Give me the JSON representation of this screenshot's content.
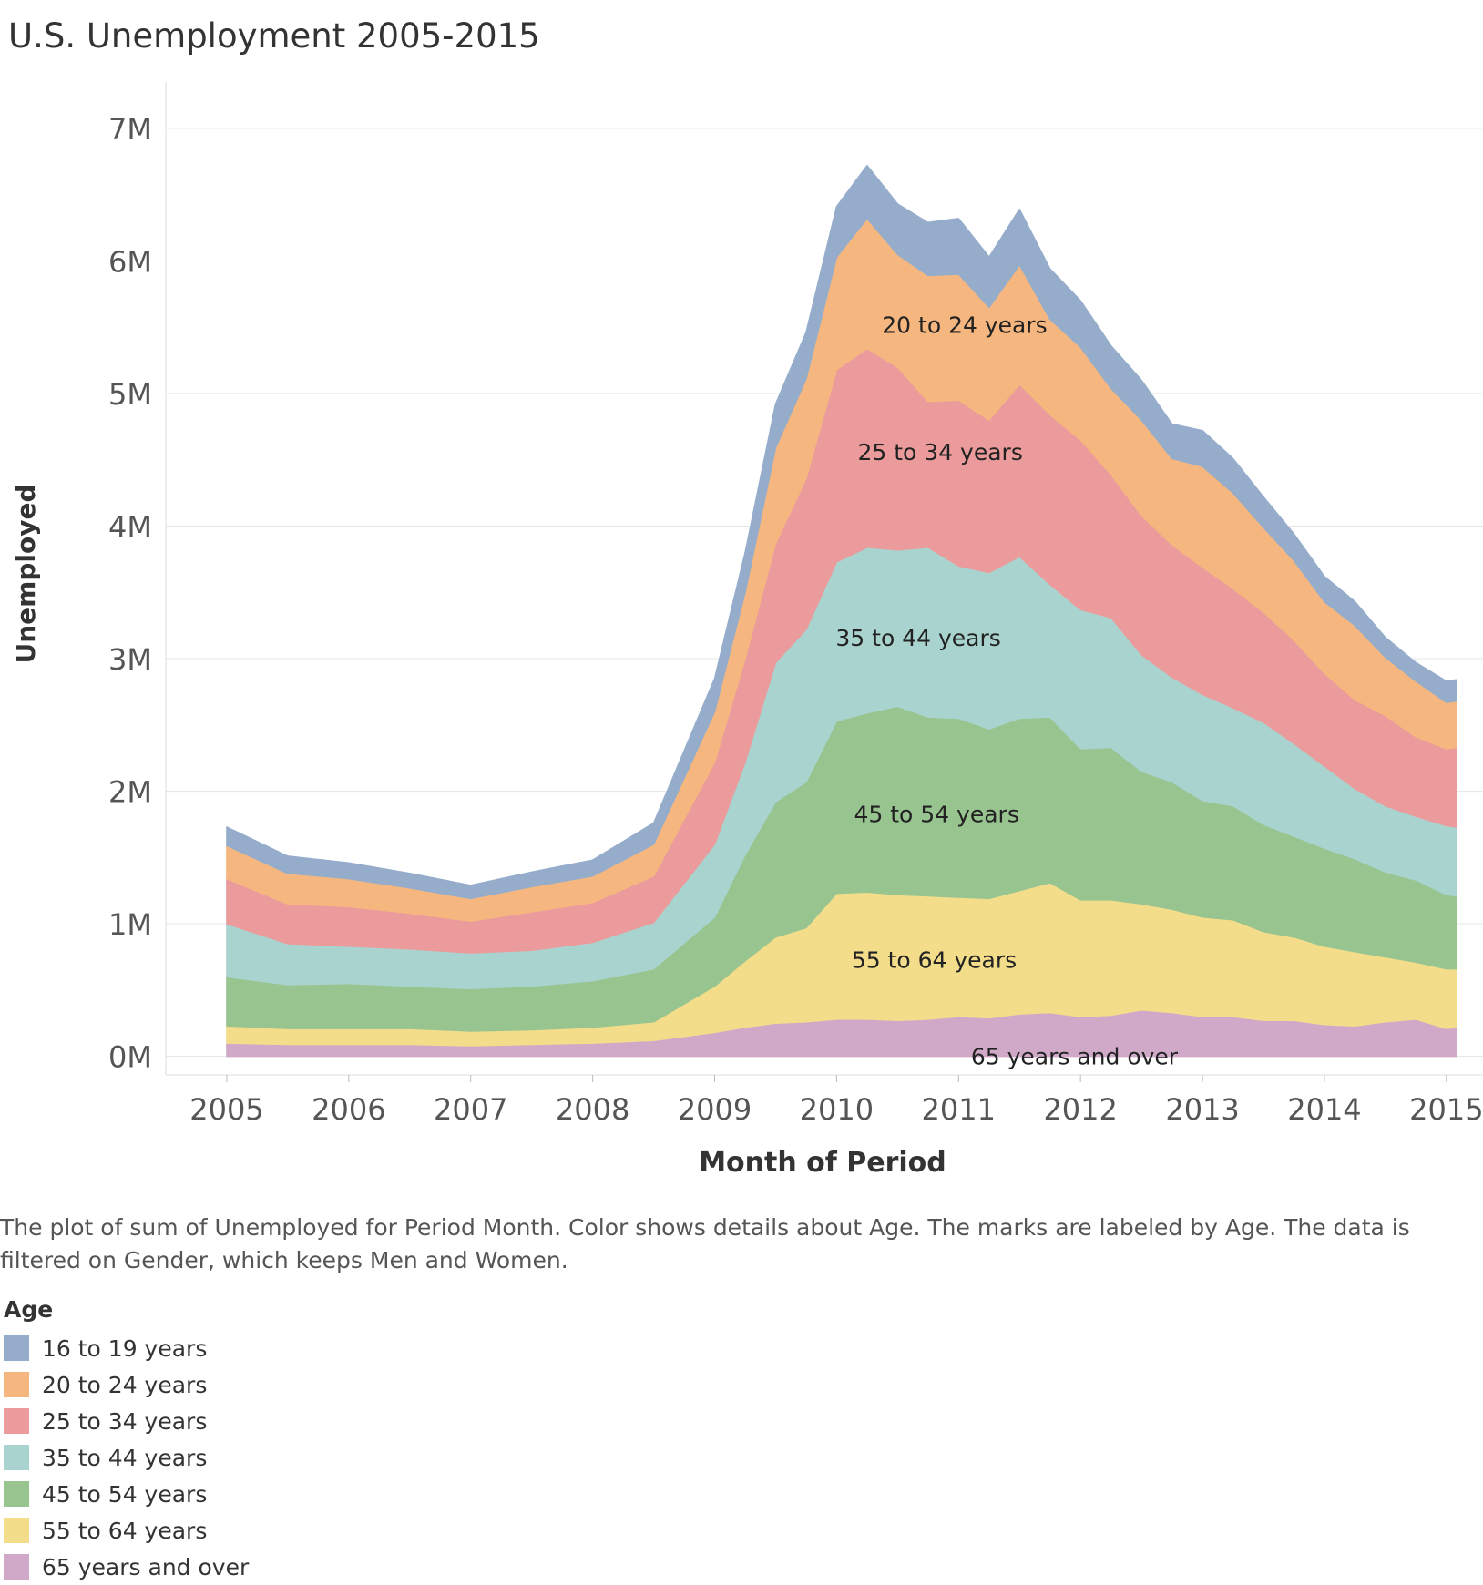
{
  "chart_data": {
    "type": "area",
    "stacked": true,
    "title": "U.S. Unemployment 2005-2015",
    "xlabel": "Month of Period",
    "ylabel": "Unemployed",
    "x_ticks": [
      "2005",
      "2006",
      "2007",
      "2008",
      "2009",
      "2010",
      "2011",
      "2012",
      "2013",
      "2014",
      "2015"
    ],
    "y_ticks": [
      "0M",
      "1M",
      "2M",
      "3M",
      "4M",
      "5M",
      "6M",
      "7M"
    ],
    "ylim": [
      -140000,
      7350000
    ],
    "xlim": [
      2004.5,
      2015.3
    ],
    "grid": true,
    "x": [
      2005.0,
      2005.5,
      2006.0,
      2006.5,
      2007.0,
      2007.5,
      2008.0,
      2008.5,
      2009.0,
      2009.25,
      2009.5,
      2009.75,
      2010.0,
      2010.25,
      2010.5,
      2010.75,
      2011.0,
      2011.25,
      2011.5,
      2011.75,
      2012.0,
      2012.25,
      2012.5,
      2012.75,
      2013.0,
      2013.25,
      2013.5,
      2013.75,
      2014.0,
      2014.25,
      2014.5,
      2014.75,
      2015.0,
      2015.08
    ],
    "series": [
      {
        "name": "65 years and over",
        "color": "#d1a9c8",
        "values": [
          0.1,
          0.09,
          0.09,
          0.09,
          0.08,
          0.09,
          0.1,
          0.12,
          0.18,
          0.22,
          0.25,
          0.26,
          0.28,
          0.28,
          0.27,
          0.28,
          0.3,
          0.29,
          0.32,
          0.33,
          0.3,
          0.31,
          0.35,
          0.33,
          0.3,
          0.3,
          0.27,
          0.27,
          0.24,
          0.23,
          0.26,
          0.28,
          0.21,
          0.22
        ]
      },
      {
        "name": "55 to 64 years",
        "color": "#f3dd8b",
        "values": [
          0.13,
          0.12,
          0.12,
          0.12,
          0.11,
          0.11,
          0.12,
          0.14,
          0.35,
          0.5,
          0.65,
          0.71,
          0.95,
          0.96,
          0.95,
          0.93,
          0.9,
          0.9,
          0.93,
          0.98,
          0.88,
          0.87,
          0.8,
          0.78,
          0.75,
          0.73,
          0.67,
          0.63,
          0.59,
          0.56,
          0.49,
          0.43,
          0.45,
          0.44
        ]
      },
      {
        "name": "45 to 54 years",
        "color": "#98c490",
        "values": [
          0.37,
          0.33,
          0.34,
          0.32,
          0.32,
          0.33,
          0.35,
          0.4,
          0.52,
          0.8,
          1.02,
          1.1,
          1.3,
          1.35,
          1.42,
          1.35,
          1.35,
          1.28,
          1.3,
          1.25,
          1.14,
          1.15,
          1.0,
          0.96,
          0.88,
          0.86,
          0.81,
          0.76,
          0.74,
          0.7,
          0.64,
          0.62,
          0.56,
          0.55
        ]
      },
      {
        "name": "35 to 44 years",
        "color": "#a9d3ce",
        "values": [
          0.4,
          0.31,
          0.28,
          0.28,
          0.27,
          0.27,
          0.29,
          0.35,
          0.55,
          0.7,
          1.05,
          1.15,
          1.2,
          1.25,
          1.18,
          1.28,
          1.15,
          1.18,
          1.22,
          1.0,
          1.05,
          0.98,
          0.88,
          0.79,
          0.8,
          0.74,
          0.77,
          0.7,
          0.62,
          0.53,
          0.5,
          0.48,
          0.52,
          0.52
        ]
      },
      {
        "name": "25 to 34 years",
        "color": "#eb9b9b",
        "values": [
          0.34,
          0.3,
          0.3,
          0.27,
          0.24,
          0.29,
          0.3,
          0.35,
          0.62,
          0.78,
          0.9,
          1.14,
          1.45,
          1.5,
          1.38,
          1.1,
          1.25,
          1.15,
          1.3,
          1.28,
          1.28,
          1.08,
          1.05,
          1.0,
          0.96,
          0.9,
          0.83,
          0.78,
          0.7,
          0.67,
          0.68,
          0.6,
          0.58,
          0.6
        ]
      },
      {
        "name": "20 to 24 years",
        "color": "#f5b77f",
        "values": [
          0.25,
          0.23,
          0.21,
          0.19,
          0.17,
          0.19,
          0.2,
          0.24,
          0.38,
          0.5,
          0.72,
          0.75,
          0.85,
          0.98,
          0.85,
          0.95,
          0.95,
          0.85,
          0.9,
          0.72,
          0.7,
          0.65,
          0.72,
          0.65,
          0.76,
          0.72,
          0.64,
          0.6,
          0.54,
          0.56,
          0.44,
          0.42,
          0.35,
          0.35
        ]
      },
      {
        "name": "16 to 19 years",
        "color": "#95adcb",
        "values": [
          0.14,
          0.13,
          0.12,
          0.11,
          0.1,
          0.11,
          0.12,
          0.16,
          0.25,
          0.3,
          0.33,
          0.35,
          0.38,
          0.4,
          0.38,
          0.4,
          0.42,
          0.38,
          0.42,
          0.38,
          0.35,
          0.32,
          0.3,
          0.26,
          0.27,
          0.26,
          0.23,
          0.2,
          0.19,
          0.18,
          0.15,
          0.14,
          0.16,
          0.16
        ]
      }
    ],
    "value_unit": "millions",
    "mark_labels": [
      {
        "text": "20 to 24 years",
        "x": 2011.05,
        "y": 5.52
      },
      {
        "text": "25 to 34 years",
        "x": 2010.85,
        "y": 4.56
      },
      {
        "text": "35 to 44 years",
        "x": 2010.67,
        "y": 3.16
      },
      {
        "text": "45 to 54 years",
        "x": 2010.82,
        "y": 1.83
      },
      {
        "text": "55 to 64 years",
        "x": 2010.8,
        "y": 0.73
      },
      {
        "text": "65 years and over",
        "x": 2011.95,
        "y": 0.0
      }
    ]
  },
  "caption": "The plot of sum of Unemployed for Period Month.  Color shows details about Age.  The marks are labeled by Age. The data is filtered on Gender, which keeps Men and Women.",
  "legend": {
    "title": "Age",
    "items": [
      {
        "label": "16 to 19 years",
        "color": "#95adcb"
      },
      {
        "label": "20 to 24 years",
        "color": "#f5b77f"
      },
      {
        "label": "25 to 34 years",
        "color": "#eb9b9b"
      },
      {
        "label": "35 to 44 years",
        "color": "#a9d3ce"
      },
      {
        "label": "45 to 54 years",
        "color": "#98c490"
      },
      {
        "label": "55 to 64 years",
        "color": "#f3dd8b"
      },
      {
        "label": "65 years and over",
        "color": "#d1a9c8"
      }
    ]
  }
}
